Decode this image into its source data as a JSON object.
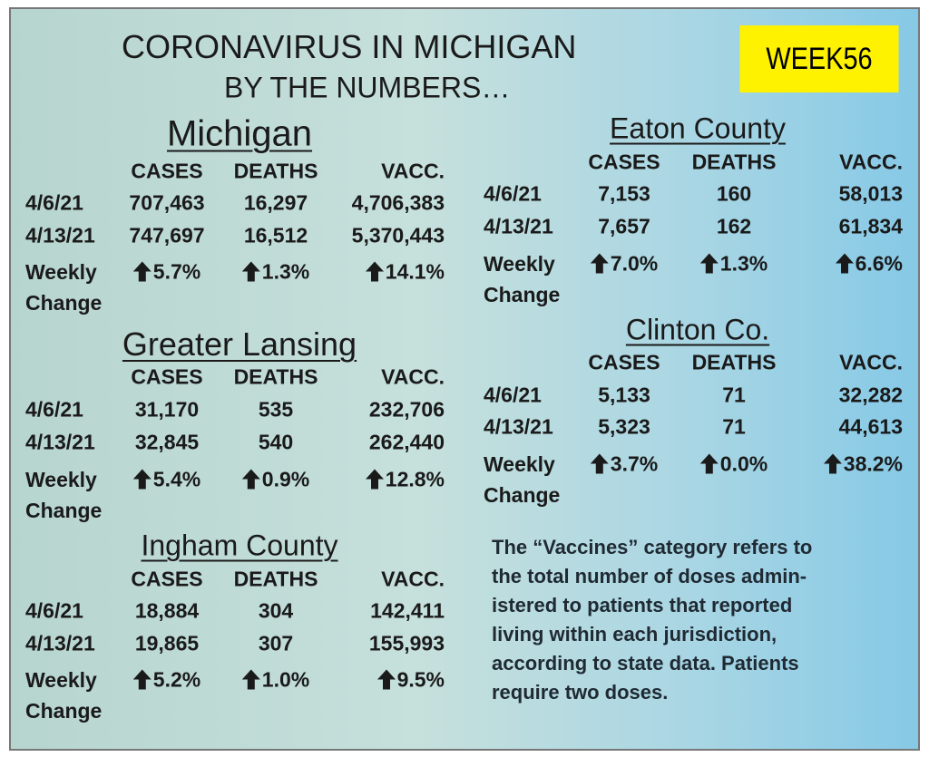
{
  "header": {
    "title": "CORONAVIRUS IN MICHIGAN",
    "subtitle": "BY THE NUMBERS…",
    "week": "WEEK56"
  },
  "sections": [
    {
      "title": "Michigan",
      "columns": [
        "CASES",
        "DEATHS",
        "VACC."
      ],
      "rows": [
        {
          "date": "4/6/21",
          "values": [
            "707,463",
            "16,297",
            "4,706,383"
          ]
        },
        {
          "date": "4/13/21",
          "values": [
            "747,697",
            "16,512",
            "5,370,443"
          ]
        }
      ],
      "change": {
        "label": "Weekly Change",
        "values": [
          "5.7%",
          "1.3%",
          "14.1%"
        ]
      }
    },
    {
      "title": "Greater Lansing",
      "columns": [
        "CASES",
        "DEATHS",
        "VACC."
      ],
      "rows": [
        {
          "date": "4/6/21",
          "values": [
            "31,170",
            "535",
            "232,706"
          ]
        },
        {
          "date": "4/13/21",
          "values": [
            "32,845",
            "540",
            "262,440"
          ]
        }
      ],
      "change": {
        "label": "Weekly Change",
        "values": [
          "5.4%",
          "0.9%",
          "12.8%"
        ]
      }
    },
    {
      "title": "Ingham County",
      "columns": [
        "CASES",
        "DEATHS",
        "VACC."
      ],
      "rows": [
        {
          "date": "4/6/21",
          "values": [
            "18,884",
            "304",
            "142,411"
          ]
        },
        {
          "date": "4/13/21",
          "values": [
            "19,865",
            "307",
            "155,993"
          ]
        }
      ],
      "change": {
        "label": "Weekly Change",
        "values": [
          "5.2%",
          "1.0%",
          "9.5%"
        ]
      }
    },
    {
      "title": "Eaton County",
      "columns": [
        "CASES",
        "DEATHS",
        "VACC."
      ],
      "rows": [
        {
          "date": "4/6/21",
          "values": [
            "7,153",
            "160",
            "58,013"
          ]
        },
        {
          "date": "4/13/21",
          "values": [
            "7,657",
            "162",
            "61,834"
          ]
        }
      ],
      "change": {
        "label": "Weekly Change",
        "values": [
          "7.0%",
          "1.3%",
          "6.6%"
        ]
      }
    },
    {
      "title": "Clinton Co.",
      "columns": [
        "CASES",
        "DEATHS",
        "VACC."
      ],
      "rows": [
        {
          "date": "4/6/21",
          "values": [
            "5,133",
            "71",
            "32,282"
          ]
        },
        {
          "date": "4/13/21",
          "values": [
            "5,323",
            "71",
            "44,613"
          ]
        }
      ],
      "change": {
        "label": "Weekly Change",
        "values": [
          "3.7%",
          "0.0%",
          "38.2%"
        ]
      }
    }
  ],
  "note": [
    "The “Vaccines” category refers to",
    "the total number of doses admin-",
    "istered to patients that reported",
    "living within each jurisdiction,",
    "according to state data. Patients",
    "require two doses."
  ]
}
